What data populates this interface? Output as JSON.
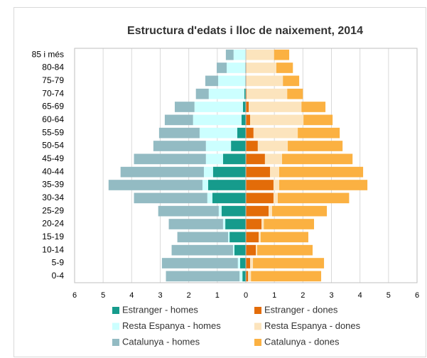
{
  "chart_data": {
    "type": "pyramid",
    "title": "Estructura d'edats i lloc de naixement, 2014",
    "categories": [
      "0-4",
      "5-9",
      "10-14",
      "15-19",
      "20-24",
      "25-29",
      "30-34",
      "35-39",
      "40-44",
      "45-49",
      "50-54",
      "55-59",
      "60-64",
      "65-69",
      "70-74",
      "75-79",
      "80-84",
      "85 i més"
    ],
    "series": [
      {
        "name": "Estranger - homes",
        "color": "#169b8c",
        "values": [
          -0.12,
          -0.2,
          -0.4,
          -0.57,
          -0.72,
          -0.85,
          -1.17,
          -1.32,
          -1.15,
          -0.8,
          -0.52,
          -0.3,
          -0.15,
          -0.1,
          -0.05,
          -0.02,
          -0.02,
          -0.01
        ]
      },
      {
        "name": "Estranger - dones",
        "color": "#e36c09",
        "values": [
          0.08,
          0.15,
          0.35,
          0.45,
          0.55,
          0.8,
          0.97,
          0.97,
          0.85,
          0.67,
          0.42,
          0.27,
          0.15,
          0.1,
          0.03,
          0.02,
          0.02,
          0.01
        ]
      },
      {
        "name": "Resta Espanya - homes",
        "color": "#ccffff",
        "values": [
          -0.1,
          -0.08,
          -0.05,
          -0.05,
          -0.08,
          -0.1,
          -0.18,
          -0.2,
          -0.32,
          -0.6,
          -0.88,
          -1.32,
          -1.7,
          -1.7,
          -1.25,
          -0.95,
          -0.65,
          -0.42
        ]
      },
      {
        "name": "Resta Espanya - dones",
        "color": "#fce4bd",
        "values": [
          0.1,
          0.1,
          0.05,
          0.07,
          0.08,
          0.12,
          0.15,
          0.2,
          0.32,
          0.6,
          1.05,
          1.55,
          1.87,
          1.85,
          1.42,
          1.28,
          1.05,
          0.98
        ]
      },
      {
        "name": "Catalunya - homes",
        "color": "#93bbc3",
        "values": [
          -2.58,
          -2.66,
          -2.15,
          -1.78,
          -1.9,
          -2.12,
          -2.57,
          -3.29,
          -2.92,
          -2.52,
          -1.84,
          -1.42,
          -0.99,
          -0.69,
          -0.45,
          -0.45,
          -0.35,
          -0.27
        ]
      },
      {
        "name": "Catalunya - dones",
        "color": "#fbb142",
        "values": [
          2.46,
          2.49,
          1.94,
          1.67,
          1.76,
          1.92,
          2.5,
          3.09,
          2.94,
          2.47,
          1.92,
          1.47,
          1.02,
          0.84,
          0.55,
          0.57,
          0.58,
          0.53
        ]
      }
    ],
    "xlim": [
      -6,
      6
    ],
    "xticks": [
      {
        "value": -6,
        "label": "6"
      },
      {
        "value": -5,
        "label": "5"
      },
      {
        "value": -4,
        "label": "4"
      },
      {
        "value": -3,
        "label": "3"
      },
      {
        "value": -2,
        "label": "2"
      },
      {
        "value": -1,
        "label": "1"
      },
      0,
      1,
      2,
      3,
      4,
      5,
      6
    ],
    "grid": true
  }
}
